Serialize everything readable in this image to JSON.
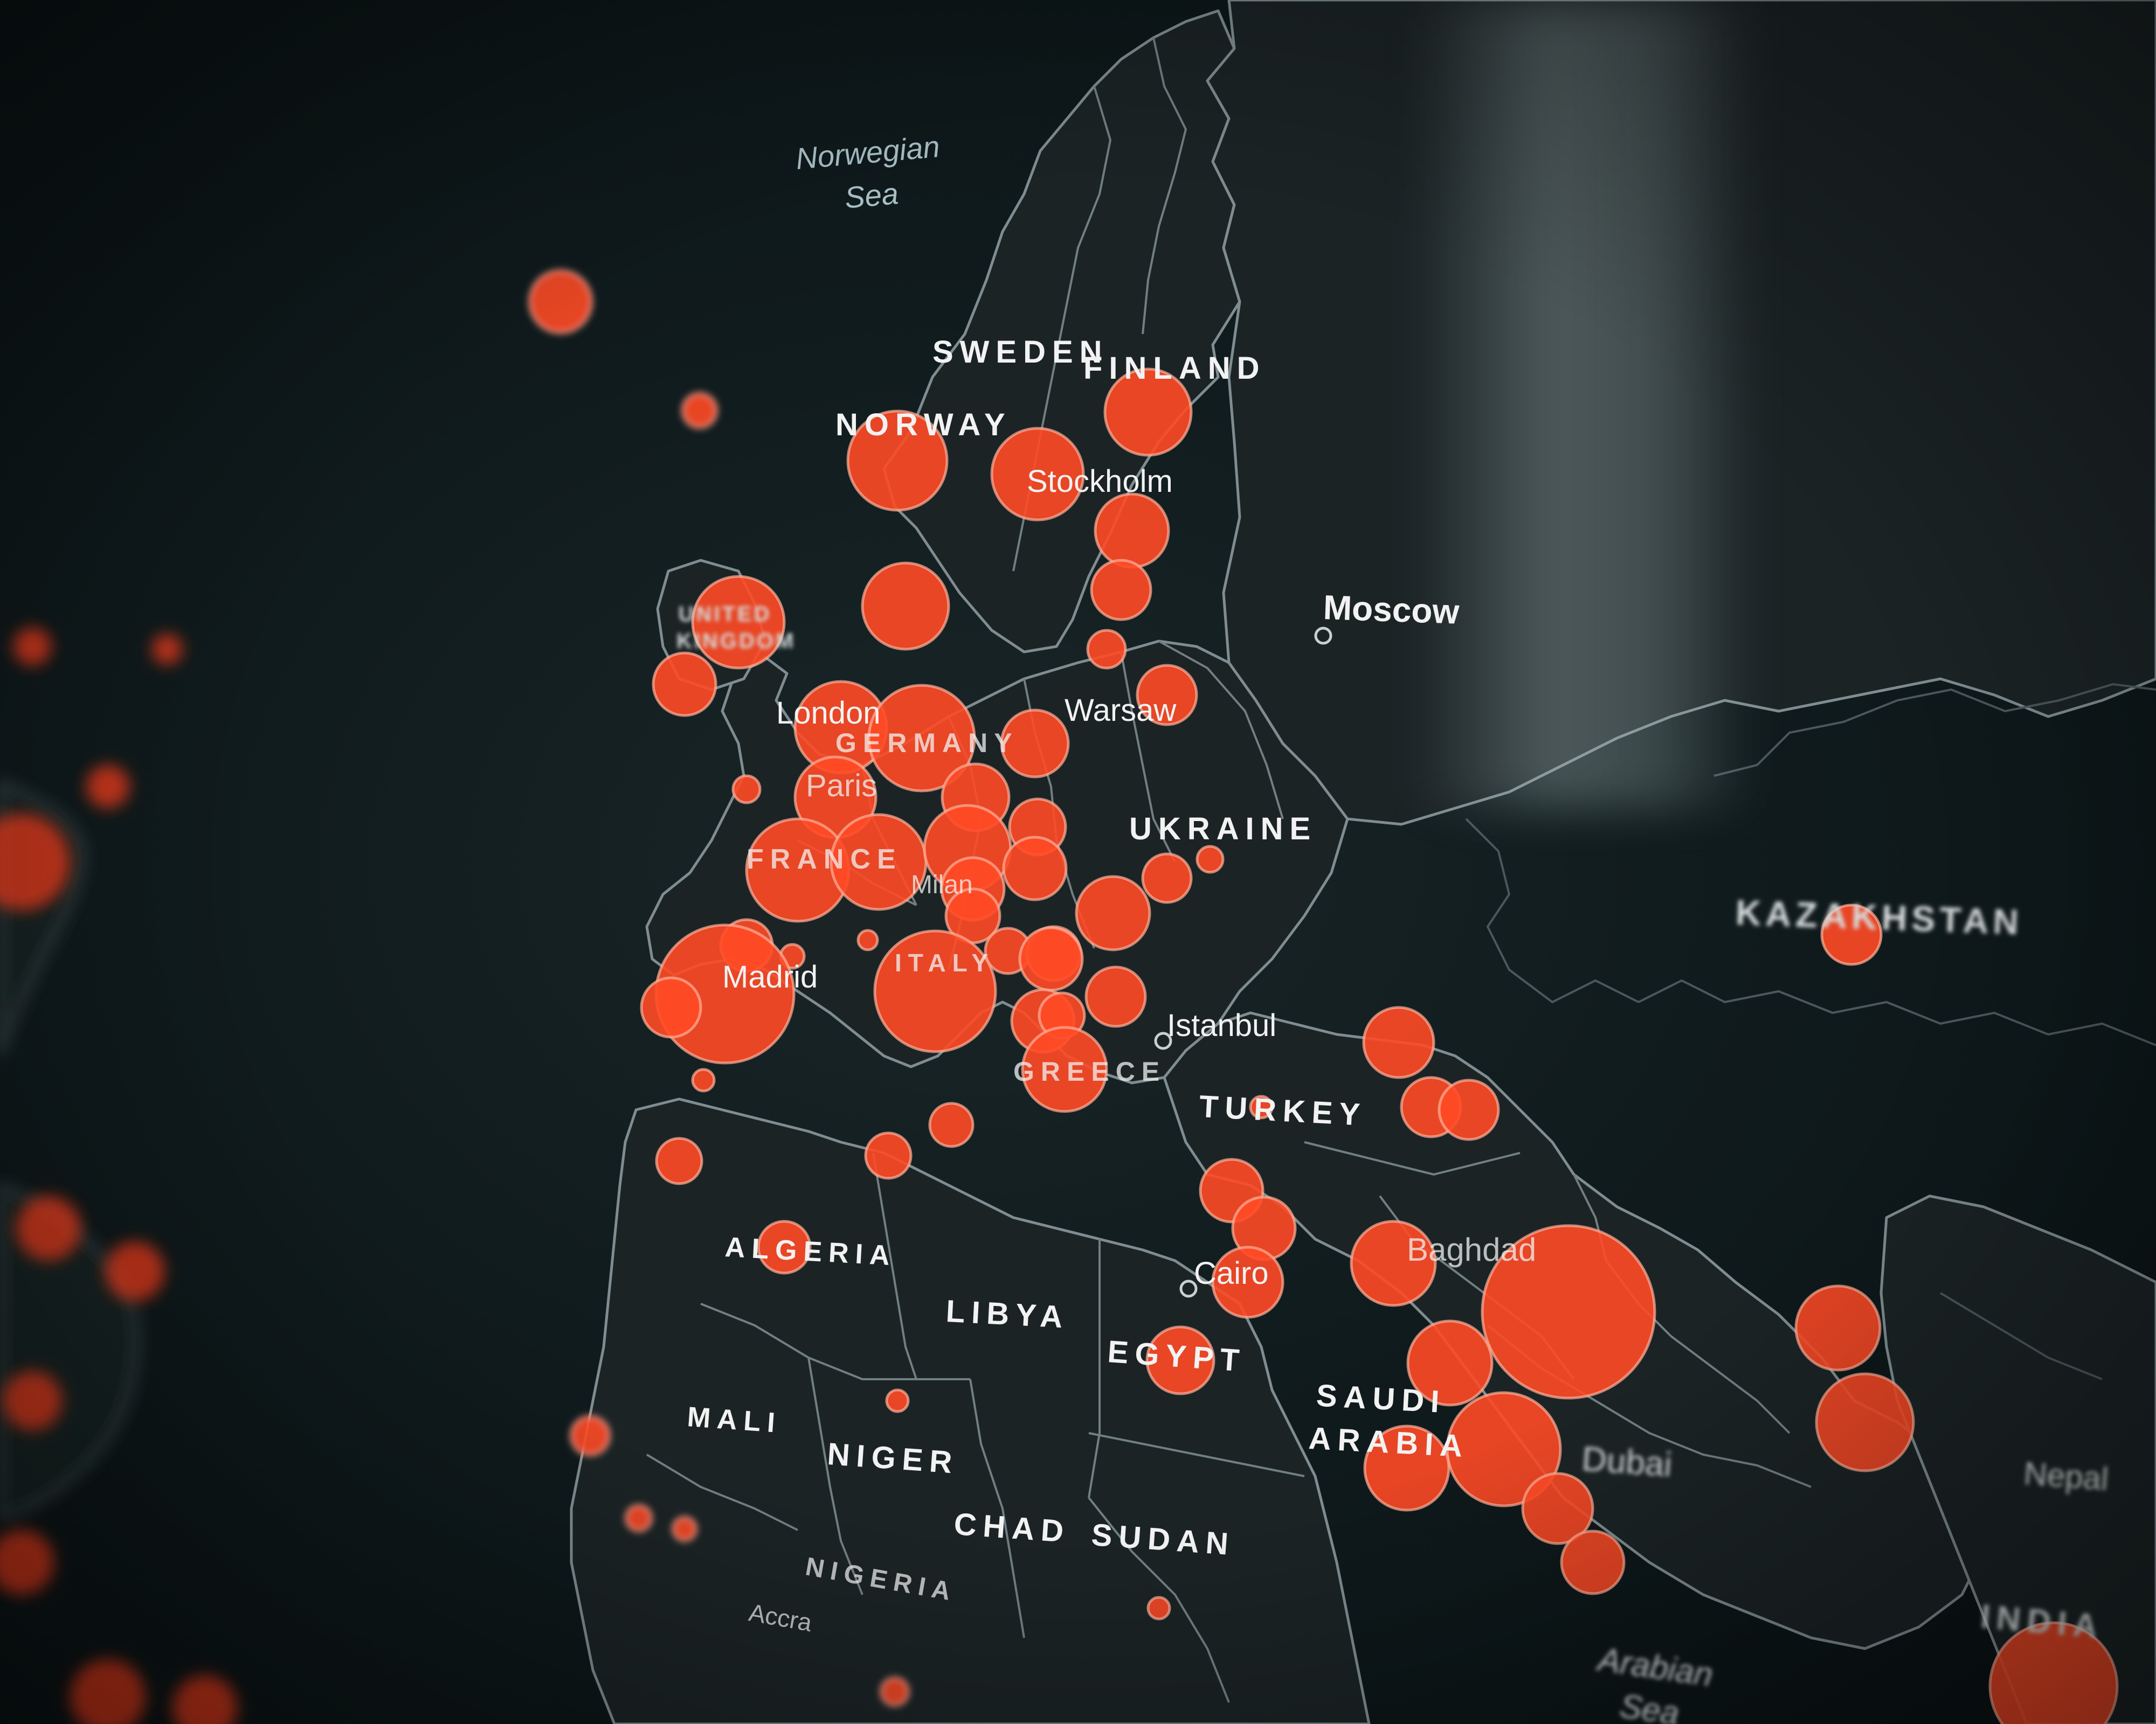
{
  "map": {
    "accent_color": "#ff4a26",
    "labels": {
      "norwegian_sea_line1": "Norwegian",
      "norwegian_sea_line2": "Sea",
      "sweden": "SWEDEN",
      "finland": "FINLAND",
      "norway": "NORWAY",
      "stockholm": "Stockholm",
      "moscow": "Moscow",
      "united_kingdom": "UNITED KINGDOM",
      "london": "London",
      "germany": "GERMANY",
      "paris": "Paris",
      "warsaw": "Warsaw",
      "ukraine": "UKRAINE",
      "france": "FRANCE",
      "milan": "Milan",
      "madrid": "Madrid",
      "italy": "ITALY",
      "istanbul": "Istanbul",
      "greece": "GREECE",
      "turkey": "TURKEY",
      "kazakhstan": "KAZAKHSTAN",
      "algeria": "ALGERIA",
      "libya": "LIBYA",
      "egypt": "EGYPT",
      "cairo": "Cairo",
      "baghdad": "Baghdad",
      "saudi_line1": "SAUDI",
      "saudi_line2": "ARABIA",
      "dubai": "Dubai",
      "mali": "MALI",
      "niger": "NIGER",
      "chad": "CHAD",
      "sudan": "SUDAN",
      "nigeria": "NIGERIA",
      "accra": "Accra",
      "india": "INDIA",
      "arabian_sea_line1": "Arabian",
      "arabian_sea_line2": "Sea",
      "nepal": "Nepal"
    }
  }
}
